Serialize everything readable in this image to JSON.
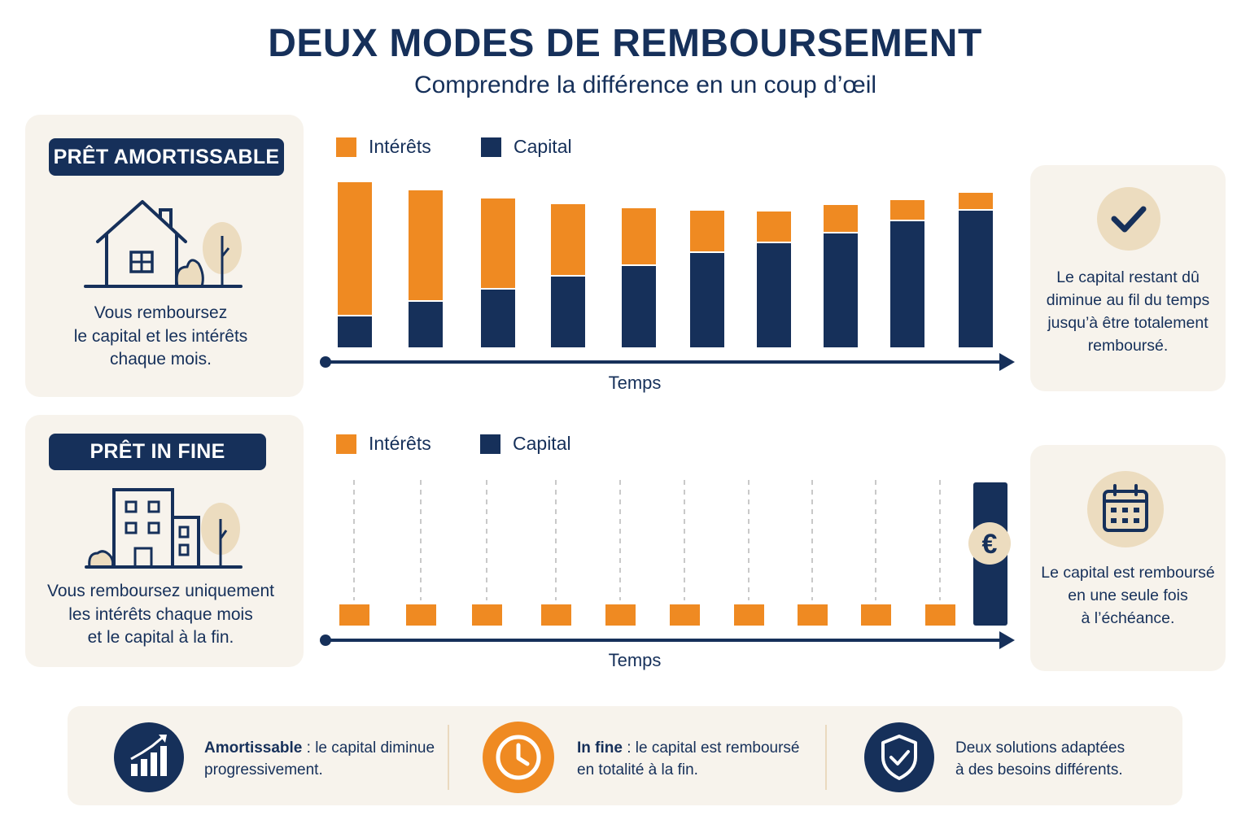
{
  "header": {
    "title": "DEUX MODES DE REMBOURSEMENT",
    "subtitle": "Comprendre la différence en un coup d’œil"
  },
  "colors": {
    "navy": "#16305a",
    "orange": "#ef8a22",
    "beige": "#f7f3ec",
    "tan": "#ecdcbf",
    "grey": "#c9c9c9"
  },
  "section_1": {
    "badge": "PRÊT AMORTISSABLE",
    "icon": "house-icon",
    "description_lines": [
      "Vous remboursez",
      "le capital et les intérêts",
      "chaque mois."
    ],
    "note_icon": "check-icon",
    "note_lines": [
      "Le capital restant dû",
      "diminue au fil du temps",
      "jusqu’à être totalement",
      "remboursé."
    ]
  },
  "section_2": {
    "badge": "PRÊT IN FINE",
    "icon": "building-icon",
    "description_lines": [
      "Vous remboursez uniquement",
      "les intérêts chaque mois",
      "et le capital à la fin."
    ],
    "note_icon": "calendar-icon",
    "note_lines": [
      "Le capital est remboursé",
      "en une seule fois",
      "à l’échéance."
    ]
  },
  "chart_data": [
    {
      "type": "bar",
      "stacked": true,
      "xlabel": "Temps",
      "legend": "top-left",
      "categories": [
        "",
        "",
        "",
        "",
        "",
        "",
        "",
        "",
        "",
        ""
      ],
      "series": [
        {
          "name": "Capital",
          "color": "#16305a",
          "values": [
            38,
            56,
            71,
            87,
            100,
            116,
            128,
            140,
            155,
            168
          ]
        },
        {
          "name": "Intérêts",
          "color": "#ef8a22",
          "values": [
            163,
            135,
            110,
            87,
            69,
            50,
            37,
            33,
            24,
            20
          ]
        }
      ]
    },
    {
      "type": "bar",
      "stacked": true,
      "xlabel": "Temps",
      "legend": "top-left",
      "categories": [
        "",
        "",
        "",
        "",
        "",
        "",
        "",
        "",
        "",
        "",
        ""
      ],
      "series": [
        {
          "name": "Capital",
          "color": "#16305a",
          "values": [
            0,
            0,
            0,
            0,
            0,
            0,
            0,
            0,
            0,
            0,
            176
          ]
        },
        {
          "name": "Intérêts",
          "color": "#ef8a22",
          "values": [
            26,
            26,
            26,
            26,
            26,
            26,
            26,
            26,
            26,
            26,
            0
          ]
        }
      ],
      "annotation": "€"
    }
  ],
  "footer": {
    "items": [
      {
        "icon": "growth-chart-icon",
        "bold": "Amortissable",
        "text_1": " : le capital diminue",
        "text_2": "progressivement."
      },
      {
        "icon": "clock-icon",
        "bold": "In fine",
        "text_1": " : le capital est remboursé",
        "text_2": "en totalité à la fin."
      },
      {
        "icon": "shield-check-icon",
        "bold": "",
        "text_1": "Deux solutions adaptées",
        "text_2": "à des besoins différents."
      }
    ]
  }
}
